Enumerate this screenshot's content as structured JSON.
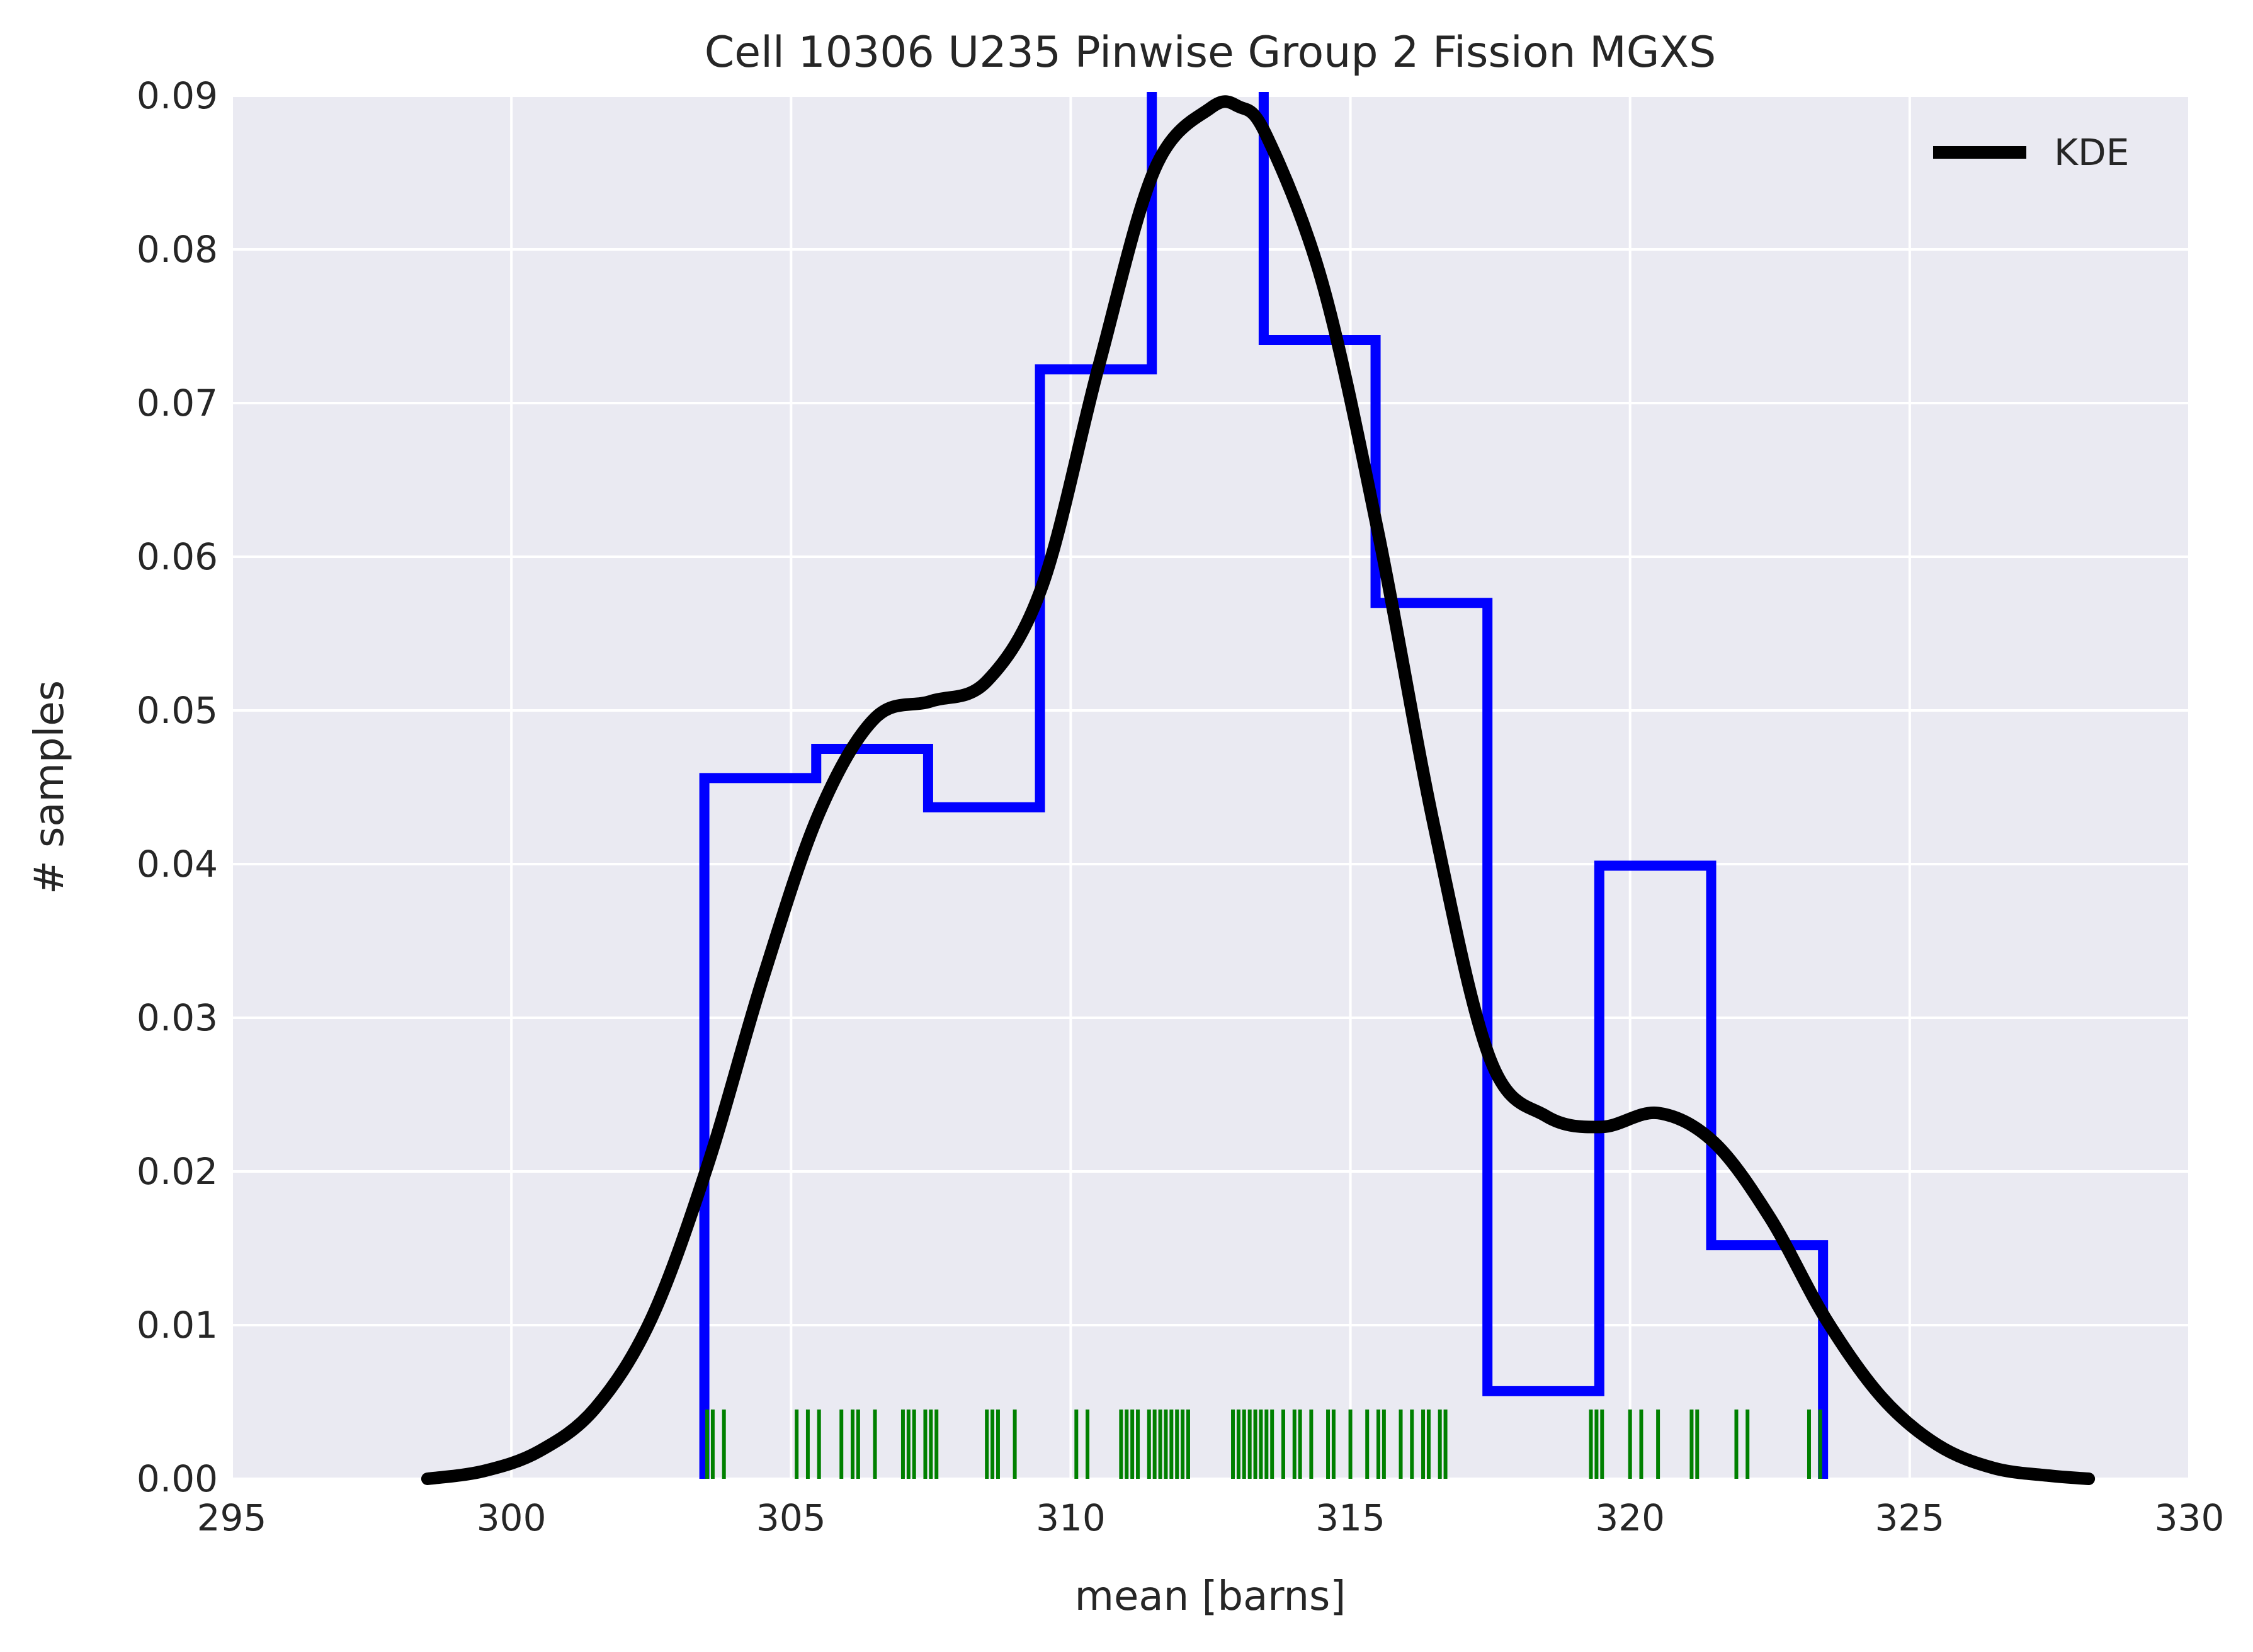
{
  "chart_data": {
    "type": "histogram",
    "title": "Cell 10306 U235 Pinwise Group 2 Fission MGXS",
    "xlabel": "mean [barns]",
    "ylabel": "# samples",
    "xlim": [
      295,
      330
    ],
    "ylim": [
      0,
      0.09
    ],
    "xticks": [
      295,
      300,
      305,
      310,
      315,
      320,
      325,
      330
    ],
    "yticks": [
      0.0,
      0.01,
      0.02,
      0.03,
      0.04,
      0.05,
      0.06,
      0.07,
      0.08,
      0.09
    ],
    "x_tick_labels": [
      "295",
      "300",
      "305",
      "310",
      "315",
      "320",
      "325",
      "330"
    ],
    "y_tick_labels": [
      "0.00",
      "0.01",
      "0.02",
      "0.03",
      "0.04",
      "0.05",
      "0.06",
      "0.07",
      "0.08",
      "0.09"
    ],
    "grid": true,
    "legend_position": "top-right",
    "legend": [
      {
        "label": "KDE",
        "color": "#000000"
      }
    ],
    "histogram": {
      "color": "#0000ff",
      "bin_edges": [
        303.45,
        305.45,
        307.45,
        309.45,
        311.45,
        313.45,
        315.45,
        317.45,
        319.45,
        321.45,
        323.45
      ],
      "densities": [
        0.0456,
        0.0475,
        0.0437,
        0.0722,
        0.095,
        0.0741,
        0.057,
        0.0057,
        0.0399,
        0.0152
      ]
    },
    "kde": {
      "name": "KDE",
      "color": "#000000",
      "x": [
        298.5,
        299.5,
        300.5,
        301.5,
        302.5,
        303.5,
        304.5,
        305.5,
        306.5,
        307.5,
        308.5,
        309.5,
        310.5,
        311.5,
        312.5,
        313.0,
        313.5,
        314.5,
        315.5,
        316.5,
        317.5,
        318.5,
        319.5,
        320.5,
        321.5,
        322.5,
        323.5,
        324.5,
        325.5,
        326.5,
        327.5,
        328.2
      ],
      "y": [
        0.0,
        0.0005,
        0.0018,
        0.0046,
        0.0104,
        0.0203,
        0.0326,
        0.0433,
        0.0495,
        0.0506,
        0.0519,
        0.0582,
        0.0724,
        0.0852,
        0.0892,
        0.0893,
        0.0874,
        0.0778,
        0.0615,
        0.0424,
        0.0273,
        0.0236,
        0.0229,
        0.0238,
        0.0219,
        0.017,
        0.0104,
        0.0053,
        0.0022,
        0.0007,
        0.0002,
        0.0
      ]
    },
    "rug": {
      "color": "#008000",
      "values": [
        303.5,
        303.6,
        303.8,
        305.1,
        305.3,
        305.5,
        305.9,
        306.1,
        306.2,
        306.5,
        307.0,
        307.1,
        307.2,
        307.4,
        307.5,
        307.6,
        308.5,
        308.6,
        308.7,
        309.0,
        310.1,
        310.3,
        310.9,
        311.0,
        311.1,
        311.2,
        311.4,
        311.5,
        311.6,
        311.7,
        311.8,
        311.9,
        312.0,
        312.1,
        312.9,
        313.0,
        313.1,
        313.2,
        313.3,
        313.4,
        313.5,
        313.6,
        313.8,
        314.0,
        314.1,
        314.3,
        314.6,
        314.7,
        315.0,
        315.3,
        315.5,
        315.6,
        315.9,
        316.1,
        316.3,
        316.4,
        316.6,
        316.7,
        319.3,
        319.4,
        319.5,
        320.0,
        320.2,
        320.5,
        321.1,
        321.2,
        321.9,
        322.1,
        323.2,
        323.4
      ]
    }
  }
}
